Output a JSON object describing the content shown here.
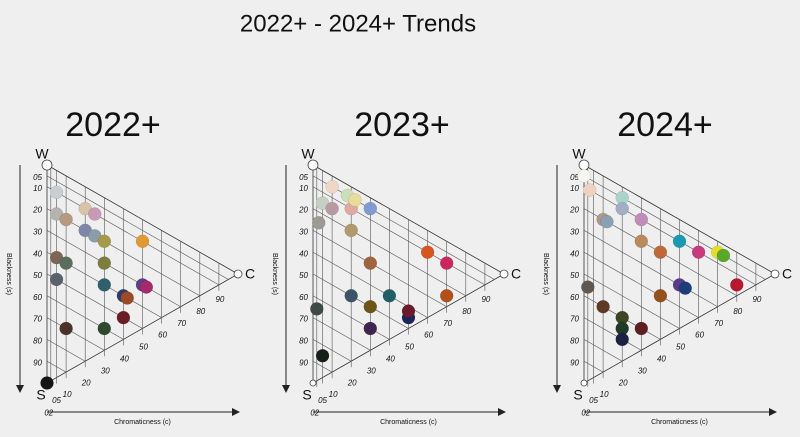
{
  "title": "2022+ - 2024+ Trends",
  "chart_data": [
    {
      "type": "ncs-triangle",
      "title": "2022+",
      "vertices": {
        "white": "W",
        "black": "S",
        "chromatic": "C"
      },
      "ylabel": "Blackness (s)",
      "xlabel": "Chromaticness (c)",
      "ylim": [
        0,
        100
      ],
      "xlim": [
        0,
        100
      ],
      "yticks": [
        {
          "value": 5,
          "label": "05"
        },
        10,
        20,
        30,
        40,
        50,
        60,
        70,
        80,
        90
      ],
      "xticks": [
        {
          "value": 2,
          "label": "02"
        },
        {
          "value": 5,
          "label": "05"
        },
        10,
        20,
        30,
        40,
        50,
        60,
        70,
        80,
        90
      ],
      "points": [
        {
          "color": "#c9cfd0",
          "s": 10,
          "c": 5
        },
        {
          "color": "#b5b3ad",
          "s": 20,
          "c": 5
        },
        {
          "color": "#b39a80",
          "s": 20,
          "c": 10
        },
        {
          "color": "#d8c3a8",
          "s": 10,
          "c": 20
        },
        {
          "color": "#c99ab5",
          "s": 10,
          "c": 25
        },
        {
          "color": "#7f87a8",
          "s": 20,
          "c": 20
        },
        {
          "color": "#8a9da8",
          "s": 20,
          "c": 25
        },
        {
          "color": "#a59a4c",
          "s": 20,
          "c": 30
        },
        {
          "color": "#e09a34",
          "s": 10,
          "c": 50
        },
        {
          "color": "#7e6655",
          "s": 40,
          "c": 5
        },
        {
          "color": "#5b6e5d",
          "s": 40,
          "c": 10
        },
        {
          "color": "#7d7d40",
          "s": 30,
          "c": 30
        },
        {
          "color": "#58616c",
          "s": 50,
          "c": 5
        },
        {
          "color": "#2f5f6c",
          "s": 40,
          "c": 30
        },
        {
          "color": "#2c3d6e",
          "s": 40,
          "c": 40
        },
        {
          "color": "#9a4a25",
          "s": 40,
          "c": 42
        },
        {
          "color": "#5d3f8a",
          "s": 30,
          "c": 50
        },
        {
          "color": "#a52a6b",
          "s": 30,
          "c": 52
        },
        {
          "color": "#4a3228",
          "s": 70,
          "c": 10
        },
        {
          "color": "#2e4a2e",
          "s": 60,
          "c": 30
        },
        {
          "color": "#6b1d26",
          "s": 50,
          "c": 40
        },
        {
          "color": "#151515",
          "s": 100,
          "c": 0
        }
      ]
    },
    {
      "type": "ncs-triangle",
      "title": "2023+",
      "vertices": {
        "white": "W",
        "black": "S",
        "chromatic": "C"
      },
      "ylabel": "Blackness (s)",
      "xlabel": "Chromaticness (c)",
      "ylim": [
        0,
        100
      ],
      "xlim": [
        0,
        100
      ],
      "yticks": [
        {
          "value": 5,
          "label": "05"
        },
        10,
        20,
        30,
        40,
        50,
        60,
        70,
        80,
        90
      ],
      "xticks": [
        {
          "value": 2,
          "label": "02"
        },
        {
          "value": 5,
          "label": "05"
        },
        10,
        20,
        30,
        40,
        50,
        60,
        70,
        80,
        90
      ],
      "points": [
        {
          "color": "#f1d6c8",
          "s": 5,
          "c": 10
        },
        {
          "color": "#c6cfc3",
          "s": 15,
          "c": 5
        },
        {
          "color": "#b99aa3",
          "s": 15,
          "c": 10
        },
        {
          "color": "#e0a8a0",
          "s": 10,
          "c": 20
        },
        {
          "color": "#c9e0b8",
          "s": 5,
          "c": 18
        },
        {
          "color": "#e8dc9a",
          "s": 5,
          "c": 22
        },
        {
          "color": "#7f9bd0",
          "s": 5,
          "c": 30
        },
        {
          "color": "#9c9a93",
          "s": 25,
          "c": 3
        },
        {
          "color": "#b29a6e",
          "s": 20,
          "c": 20
        },
        {
          "color": "#a0643e",
          "s": 30,
          "c": 30
        },
        {
          "color": "#d5561e",
          "s": 10,
          "c": 60
        },
        {
          "color": "#c8285e",
          "s": 10,
          "c": 70
        },
        {
          "color": "#3d5468",
          "s": 50,
          "c": 20
        },
        {
          "color": "#6b5518",
          "s": 50,
          "c": 30
        },
        {
          "color": "#1f5f66",
          "s": 40,
          "c": 40
        },
        {
          "color": "#b2501c",
          "s": 25,
          "c": 70
        },
        {
          "color": "#3e4a46",
          "s": 65,
          "c": 2
        },
        {
          "color": "#3f2550",
          "s": 60,
          "c": 30
        },
        {
          "color": "#1c2558",
          "s": 45,
          "c": 50
        },
        {
          "color": "#6e1a2e",
          "s": 42,
          "c": 50
        },
        {
          "color": "#172018",
          "s": 85,
          "c": 5
        }
      ]
    },
    {
      "type": "ncs-triangle",
      "title": "2024+",
      "vertices": {
        "white": "W",
        "black": "S",
        "chromatic": "C"
      },
      "ylabel": "Blackness (s)",
      "xlabel": "Chromaticness (c)",
      "ylim": [
        0,
        100
      ],
      "xlim": [
        0,
        100
      ],
      "yticks": [
        {
          "value": 5,
          "label": "05"
        },
        10,
        20,
        30,
        40,
        50,
        60,
        70,
        80,
        90
      ],
      "xticks": [
        {
          "value": 2,
          "label": "02"
        },
        {
          "value": 5,
          "label": "05"
        },
        10,
        20,
        30,
        40,
        50,
        60,
        70,
        80,
        90
      ],
      "points": [
        {
          "color": "#f8f6ee",
          "s": 5,
          "c": 0
        },
        {
          "color": "#f0d0c0",
          "s": 10,
          "c": 3
        },
        {
          "color": "#a8d4cc",
          "s": 5,
          "c": 20
        },
        {
          "color": "#a3adc4",
          "s": 10,
          "c": 20
        },
        {
          "color": "#c08cb8",
          "s": 10,
          "c": 30
        },
        {
          "color": "#b09a82",
          "s": 20,
          "c": 10
        },
        {
          "color": "#8aa0b4",
          "s": 20,
          "c": 12
        },
        {
          "color": "#b88a5c",
          "s": 20,
          "c": 30
        },
        {
          "color": "#c0683a",
          "s": 20,
          "c": 40
        },
        {
          "color": "#1a9ab0",
          "s": 10,
          "c": 50
        },
        {
          "color": "#c83a7e",
          "s": 10,
          "c": 60
        },
        {
          "color": "#e6dc2a",
          "s": 5,
          "c": 70
        },
        {
          "color": "#58a82a",
          "s": 5,
          "c": 73
        },
        {
          "color": "#b8182e",
          "s": 15,
          "c": 80
        },
        {
          "color": "#5a3a8a",
          "s": 30,
          "c": 50
        },
        {
          "color": "#1e3c78",
          "s": 30,
          "c": 53
        },
        {
          "color": "#94501e",
          "s": 40,
          "c": 40
        },
        {
          "color": "#5f5752",
          "s": 55,
          "c": 2
        },
        {
          "color": "#5e3a26",
          "s": 60,
          "c": 10
        },
        {
          "color": "#3c4424",
          "s": 60,
          "c": 20
        },
        {
          "color": "#5e1e22",
          "s": 60,
          "c": 30
        },
        {
          "color": "#1e3a28",
          "s": 65,
          "c": 20
        },
        {
          "color": "#1c2044",
          "s": 70,
          "c": 20
        }
      ]
    }
  ]
}
